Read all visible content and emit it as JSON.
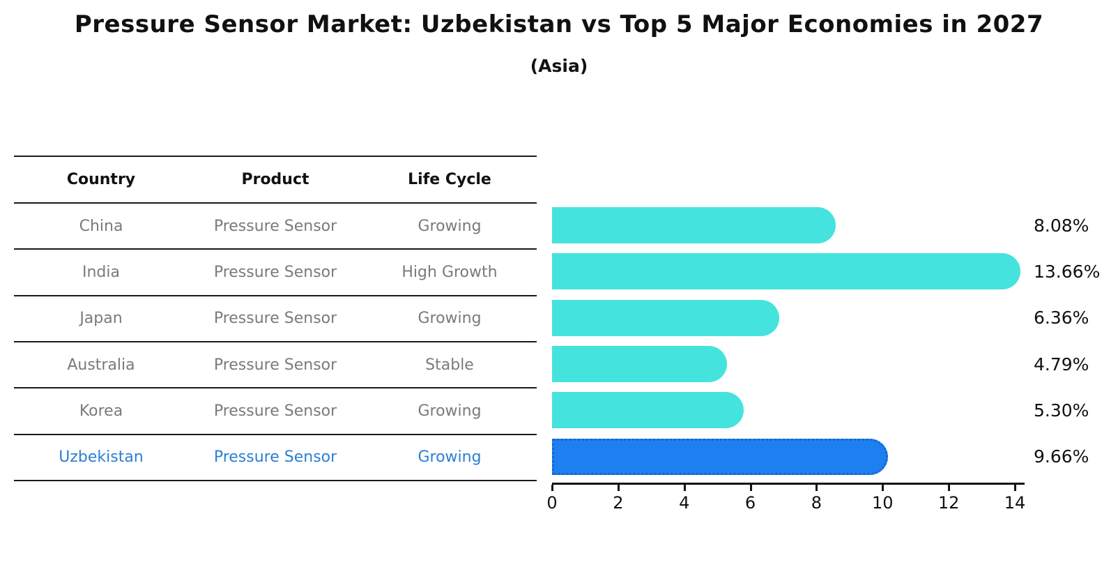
{
  "title": "Pressure Sensor Market: Uzbekistan vs Top 5 Major Economies in 2027",
  "subtitle": "(Asia)",
  "table": {
    "headers": [
      "Country",
      "Product",
      "Life Cycle"
    ],
    "rows": [
      {
        "country": "China",
        "product": "Pressure Sensor",
        "life_cycle": "Growing",
        "highlight": false
      },
      {
        "country": "India",
        "product": "Pressure Sensor",
        "life_cycle": "High Growth",
        "highlight": false
      },
      {
        "country": "Japan",
        "product": "Pressure Sensor",
        "life_cycle": "Growing",
        "highlight": false
      },
      {
        "country": "Australia",
        "product": "Pressure Sensor",
        "life_cycle": "Stable",
        "highlight": false
      },
      {
        "country": "Korea",
        "product": "Pressure Sensor",
        "life_cycle": "Growing",
        "highlight": false
      },
      {
        "country": "Uzbekistan",
        "product": "Pressure Sensor",
        "life_cycle": "Growing",
        "highlight": true
      }
    ]
  },
  "chart_data": {
    "type": "bar",
    "orientation": "horizontal",
    "title": "Pressure Sensor Market: Uzbekistan vs Top 5 Major Economies in 2027",
    "subtitle": "(Asia)",
    "categories": [
      "China",
      "India",
      "Japan",
      "Australia",
      "Korea",
      "Uzbekistan"
    ],
    "values": [
      8.08,
      13.66,
      6.36,
      4.79,
      5.3,
      9.66
    ],
    "value_labels": [
      "8.08%",
      "13.66%",
      "6.36%",
      "4.79%",
      "5.30%",
      "9.66%"
    ],
    "xlabel": "",
    "ylabel": "",
    "xlim": [
      0,
      14
    ],
    "xticks": [
      0,
      2,
      4,
      6,
      8,
      10,
      12,
      14
    ],
    "grid": false,
    "legend": false,
    "highlight_index": 5,
    "colors": {
      "bar": "#45E3DD",
      "highlight_bar": "#1E80F0",
      "highlight_border": "#1565C8",
      "table_text": "#7a7a7a",
      "highlight_text": "#2B7FD4",
      "heading_text": "#111111"
    }
  }
}
